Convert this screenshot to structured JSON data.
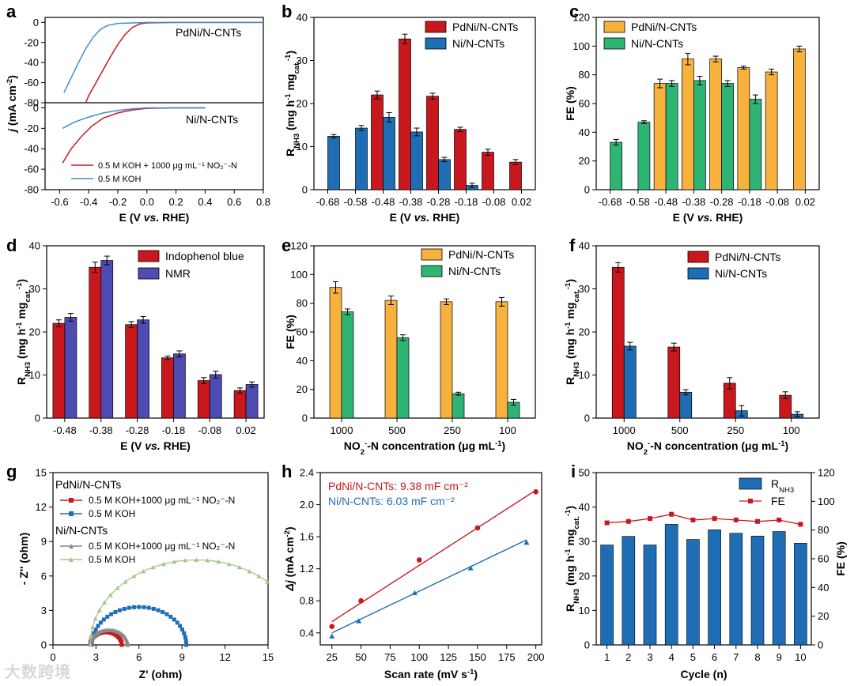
{
  "colors": {
    "red": "#C8181E",
    "blue": "#1F6EB5",
    "orange": "#F7B23E",
    "green": "#2EB574",
    "indigo": "#4E4BB2",
    "lightblue": "#3C8FD1",
    "grey": "#8A8A8A",
    "sage": "#A6C78A",
    "fe_red": "#C8181E"
  },
  "watermark": "大数跨境",
  "chart_data": [
    {
      "id": "a",
      "panel": "a",
      "type": "line",
      "xlabel": "E (V vs. RHE)",
      "ylabel": "j (mA cm⁻²)",
      "xlim": [
        -0.7,
        0.8
      ],
      "xticks": [
        "-0.6",
        "-0.4",
        "-0.2",
        "0.0",
        "0.2",
        "0.4",
        "0.6",
        "0.8"
      ],
      "top": {
        "label": "PdNi/N-CNTs",
        "ylim": [
          -80,
          5
        ],
        "yticks": [
          "0",
          "-20",
          "-40",
          "-60",
          "-80"
        ],
        "series": [
          {
            "name": "0.5 M KOH + 1000 μg mL⁻¹ NO₂⁻-N",
            "color": "red",
            "points": [
              [
                -0.42,
                -80
              ],
              [
                -0.4,
                -73
              ],
              [
                -0.35,
                -60
              ],
              [
                -0.3,
                -47
              ],
              [
                -0.25,
                -34
              ],
              [
                -0.2,
                -22
              ],
              [
                -0.15,
                -12
              ],
              [
                -0.1,
                -5
              ],
              [
                -0.05,
                -1.5
              ],
              [
                0,
                -0.5
              ],
              [
                0.2,
                0
              ],
              [
                0.8,
                0
              ]
            ]
          },
          {
            "name": "0.5 M KOH",
            "color": "lightblue",
            "points": [
              [
                -0.57,
                -70
              ],
              [
                -0.52,
                -55
              ],
              [
                -0.47,
                -40
              ],
              [
                -0.42,
                -26
              ],
              [
                -0.37,
                -15
              ],
              [
                -0.32,
                -7
              ],
              [
                -0.27,
                -3
              ],
              [
                -0.2,
                -1
              ],
              [
                0,
                0
              ],
              [
                0.8,
                0
              ]
            ]
          }
        ]
      },
      "bottom": {
        "label": "Ni/N-CNTs",
        "ylim": [
          -80,
          5
        ],
        "yticks": [
          "0",
          "-20",
          "-40",
          "-60",
          "-80"
        ],
        "series": [
          {
            "name": "0.5 M KOH + 1000 μg mL⁻¹ NO₂⁻-N",
            "color": "red",
            "points": [
              [
                -0.58,
                -54
              ],
              [
                -0.52,
                -40
              ],
              [
                -0.45,
                -28
              ],
              [
                -0.38,
                -18
              ],
              [
                -0.3,
                -10
              ],
              [
                -0.2,
                -5
              ],
              [
                -0.1,
                -2
              ],
              [
                0,
                -0.5
              ],
              [
                0.2,
                0
              ],
              [
                0.4,
                0
              ]
            ]
          },
          {
            "name": "0.5 M KOH",
            "color": "lightblue",
            "points": [
              [
                -0.58,
                -20
              ],
              [
                -0.5,
                -14
              ],
              [
                -0.4,
                -9
              ],
              [
                -0.3,
                -5
              ],
              [
                -0.2,
                -2.5
              ],
              [
                -0.1,
                -1
              ],
              [
                0,
                0
              ],
              [
                0.4,
                0
              ]
            ]
          }
        ]
      },
      "legend": [
        "0.5 M KOH + 1000 μg mL⁻¹ NO₂⁻-N",
        "0.5 M KOH"
      ]
    },
    {
      "id": "b",
      "panel": "b",
      "type": "bar",
      "xlabel": "E (V vs. RHE)",
      "ylabel": "R NH3 (mg h⁻¹ mg cat.⁻¹)",
      "ylim": [
        0,
        40
      ],
      "yticks": [
        "0",
        "10",
        "20",
        "30",
        "40"
      ],
      "categories": [
        "-0.68",
        "-0.58",
        "-0.48",
        "-0.38",
        "-0.28",
        "-0.18",
        "-0.08",
        "0.02"
      ],
      "series": [
        {
          "name": "PdNi/N-CNTs",
          "color": "red",
          "values": [
            null,
            null,
            22,
            35,
            21.7,
            14,
            8.7,
            6.4
          ],
          "err": [
            0,
            0,
            0.9,
            1.1,
            0.7,
            0.5,
            0.7,
            0.6
          ]
        },
        {
          "name": "Ni/N-CNTs",
          "color": "blue",
          "values": [
            12.4,
            14.3,
            16.8,
            13.4,
            7.0,
            1.0,
            null,
            null
          ],
          "err": [
            0.4,
            0.6,
            1.1,
            0.9,
            0.5,
            0.5,
            0,
            0
          ]
        }
      ]
    },
    {
      "id": "c",
      "panel": "c",
      "type": "bar",
      "xlabel": "E (V vs. RHE)",
      "ylabel": "FE (%)",
      "ylim": [
        0,
        120
      ],
      "yticks": [
        "0",
        "20",
        "40",
        "60",
        "80",
        "100",
        "120"
      ],
      "categories": [
        "-0.68",
        "-0.58",
        "-0.48",
        "-0.38",
        "-0.28",
        "-0.18",
        "-0.08",
        "0.02"
      ],
      "series": [
        {
          "name": "PdNi/N-CNTs",
          "color": "orange",
          "values": [
            null,
            null,
            74,
            91,
            91,
            85,
            82,
            98
          ],
          "err": [
            0,
            0,
            3,
            4,
            2,
            1,
            2,
            2
          ]
        },
        {
          "name": "Ni/N-CNTs",
          "color": "green",
          "values": [
            33,
            47,
            74,
            76,
            74,
            63,
            null,
            null
          ],
          "err": [
            2,
            1,
            2,
            3,
            2,
            3,
            0,
            0
          ]
        }
      ]
    },
    {
      "id": "d",
      "panel": "d",
      "type": "bar",
      "xlabel": "E (V vs. RHE)",
      "ylabel": "R NH3 (mg h⁻¹ mg cat.⁻¹)",
      "ylim": [
        0,
        40
      ],
      "yticks": [
        "0",
        "10",
        "20",
        "30",
        "40"
      ],
      "categories": [
        "-0.48",
        "-0.38",
        "-0.28",
        "-0.18",
        "-0.08",
        "0.02"
      ],
      "series": [
        {
          "name": "Indophenol blue",
          "color": "red",
          "values": [
            22,
            35,
            21.7,
            14,
            8.7,
            6.4
          ],
          "err": [
            0.8,
            1.2,
            0.7,
            0.4,
            0.7,
            0.6
          ]
        },
        {
          "name": "NMR",
          "color": "indigo",
          "values": [
            23.4,
            36.6,
            22.8,
            14.9,
            10.1,
            7.8
          ],
          "err": [
            0.9,
            1.0,
            0.8,
            0.7,
            0.8,
            0.6
          ]
        }
      ]
    },
    {
      "id": "e",
      "panel": "e",
      "type": "bar",
      "xlabel": "NO₂⁻-N concentration (μg mL⁻¹)",
      "ylabel": "FE (%)",
      "ylim": [
        0,
        120
      ],
      "yticks": [
        "0",
        "20",
        "40",
        "60",
        "80",
        "100",
        "120"
      ],
      "categories": [
        "1000",
        "500",
        "250",
        "100"
      ],
      "series": [
        {
          "name": "PdNi/N-CNTs",
          "color": "orange",
          "values": [
            91,
            82,
            81,
            81
          ],
          "err": [
            4,
            3,
            2,
            3
          ]
        },
        {
          "name": "Ni/N-CNTs",
          "color": "green",
          "values": [
            74,
            56,
            17,
            11
          ],
          "err": [
            2,
            2,
            1,
            2
          ]
        }
      ]
    },
    {
      "id": "f",
      "panel": "f",
      "type": "bar",
      "xlabel": "NO₂⁻-N concentration (μg mL⁻¹)",
      "ylabel": "R NH3 (mg h⁻¹ mg cat.⁻¹)",
      "ylim": [
        0,
        40
      ],
      "yticks": [
        "0",
        "10",
        "20",
        "30",
        "40"
      ],
      "categories": [
        "1000",
        "500",
        "250",
        "100"
      ],
      "series": [
        {
          "name": "PdNi/N-CNTs",
          "color": "red",
          "values": [
            35,
            16.5,
            8.1,
            5.3
          ],
          "err": [
            1.1,
            0.9,
            1.3,
            0.8
          ]
        },
        {
          "name": "Ni/N-CNTs",
          "color": "blue",
          "values": [
            16.7,
            6.0,
            1.7,
            0.9
          ],
          "err": [
            0.9,
            0.6,
            1.2,
            0.6
          ]
        }
      ]
    },
    {
      "id": "g",
      "panel": "g",
      "type": "scatter",
      "xlabel": "Z' (ohm)",
      "ylabel": "- Z'' (ohm)",
      "xlim": [
        0,
        15
      ],
      "ylim": [
        0,
        15
      ],
      "xticks": [
        "0",
        "3",
        "6",
        "9",
        "12",
        "15"
      ],
      "yticks": [
        "0",
        "3",
        "6",
        "9",
        "12",
        "15"
      ],
      "groups": [
        "PdNi/N-CNTs",
        "Ni/N-CNTs"
      ],
      "series": [
        {
          "name": "0.5 M KOH+1000 μg mL⁻¹ NO₂⁻-N",
          "group": "PdNi/N-CNTs",
          "color": "red",
          "marker": "square",
          "center": 3.7,
          "radius": 1.1,
          "x0": 2.6
        },
        {
          "name": "0.5 M KOH",
          "group": "PdNi/N-CNTs",
          "color": "blue",
          "marker": "square",
          "center": 6.0,
          "radius": 3.3,
          "x0": 2.6
        },
        {
          "name": "0.5 M KOH+1000 μg mL⁻¹ NO₂⁻-N",
          "group": "Ni/N-CNTs",
          "color": "grey",
          "marker": "triangle",
          "center": 3.9,
          "radius": 1.3,
          "x0": 2.6
        },
        {
          "name": "0.5 M KOH",
          "group": "Ni/N-CNTs",
          "color": "sage",
          "marker": "triangle",
          "center": 10.0,
          "radius": 7.4,
          "x0": 2.6
        }
      ]
    },
    {
      "id": "h",
      "panel": "h",
      "type": "scatter",
      "xlabel": "Scan rate (mV s⁻¹)",
      "ylabel": "Δj (mA cm⁻²)",
      "xlim": [
        15,
        205
      ],
      "ylim": [
        0.25,
        2.4
      ],
      "xticks": [
        "25",
        "50",
        "75",
        "100",
        "125",
        "150",
        "175",
        "200"
      ],
      "yticks": [
        "0.4",
        "0.8",
        "1.2",
        "1.6",
        "2.0",
        "2.4"
      ],
      "series": [
        {
          "name": "PdNi/N-CNTs: 9.38 mF cm⁻²",
          "color": "red",
          "marker": "circle",
          "points": [
            [
              25,
              0.48
            ],
            [
              50,
              0.8
            ],
            [
              100,
              1.31
            ],
            [
              150,
              1.71
            ],
            [
              200,
              2.16
            ]
          ],
          "fit": [
            [
              25,
              0.54
            ],
            [
              200,
              2.18
            ]
          ]
        },
        {
          "name": "Ni/N-CNTs: 6.03 mF cm⁻²",
          "color": "blue",
          "marker": "triangle",
          "points": [
            [
              25,
              0.36
            ],
            [
              48,
              0.55
            ],
            [
              96,
              0.9
            ],
            [
              144,
              1.21
            ],
            [
              192,
              1.53
            ]
          ],
          "fit": [
            [
              25,
              0.4
            ],
            [
              192,
              1.56
            ]
          ]
        }
      ]
    },
    {
      "id": "i",
      "panel": "i",
      "type": "bar",
      "xlabel": "Cycle (n)",
      "ylabel": "R NH3 (mg h⁻¹ mg cat.⁻¹)",
      "ylabel_right": "FE (%)",
      "ylim": [
        0,
        50
      ],
      "yticks": [
        "0",
        "10",
        "20",
        "30",
        "40",
        "50"
      ],
      "ylim_right": [
        0,
        120
      ],
      "yticks_right": [
        "0",
        "20",
        "40",
        "60",
        "80",
        "100",
        "120"
      ],
      "categories": [
        "1",
        "2",
        "3",
        "4",
        "5",
        "6",
        "7",
        "8",
        "9",
        "10"
      ],
      "series": [
        {
          "name": "R NH3",
          "color": "blue",
          "values": [
            29,
            31.5,
            29,
            35,
            30.6,
            33.4,
            32.4,
            31.6,
            32.9,
            29.5
          ]
        },
        {
          "name": "FE",
          "color": "fe_red",
          "axis": "right",
          "values": [
            85,
            86,
            88,
            91,
            87,
            88,
            87,
            86,
            87,
            84
          ]
        }
      ]
    }
  ]
}
